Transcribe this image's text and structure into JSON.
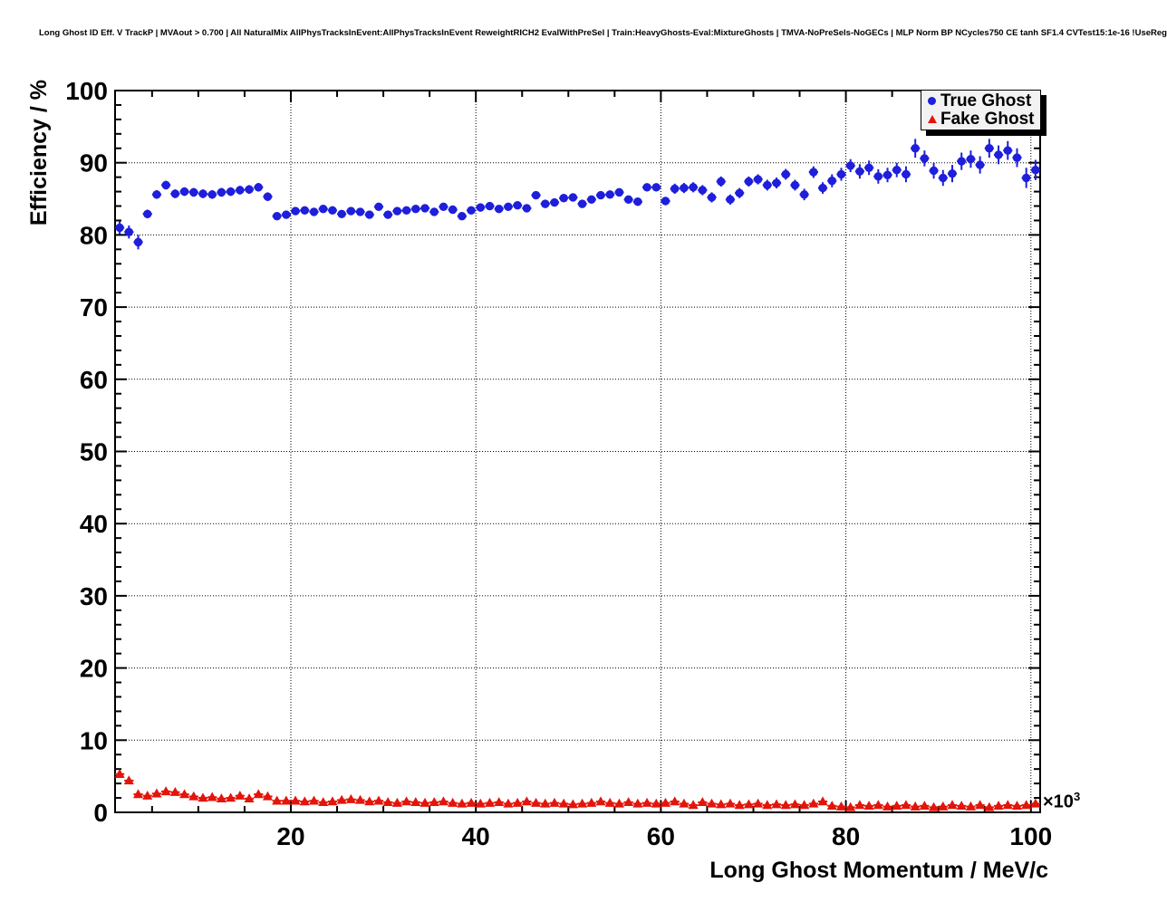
{
  "title": "Long Ghost ID Eff. V TrackP | MVAout > 0.700 | All NaturalMix AllPhysTracksInEvent:AllPhysTracksInEvent ReweightRICH2 EvalWithPreSel | Train:HeavyGhosts-Eval:MixtureGhosts | TMVA-NoPreSels-NoGECs | MLP Norm BP NCycles750 CE tanh SF1.4 CVTest15:1e-16 !UseReg",
  "axes": {
    "x_label": "Long Ghost Momentum / MeV/c",
    "y_label": "Efficiency / %",
    "x_exponent_base": "×10",
    "x_exponent_power": "3",
    "x_major_ticks": [
      20,
      40,
      60,
      80,
      100
    ],
    "x_tick_labels": [
      "20",
      "40",
      "60",
      "80",
      "100"
    ],
    "x_minor_step": 5,
    "y_major_ticks": [
      0,
      10,
      20,
      30,
      40,
      50,
      60,
      70,
      80,
      90,
      100
    ],
    "y_tick_labels": [
      "0",
      "10",
      "20",
      "30",
      "40",
      "50",
      "60",
      "70",
      "80",
      "90",
      "100"
    ],
    "y_minor_step": 2,
    "x_range_thousands": [
      1,
      101
    ],
    "y_range": [
      0,
      100
    ]
  },
  "legend": {
    "entries": [
      {
        "label": "True Ghost",
        "marker": "filled-circle",
        "color": "#1e1edc"
      },
      {
        "label": "Fake Ghost",
        "marker": "filled-triangle-up",
        "color": "#e3150b"
      }
    ]
  },
  "colors": {
    "background": "#ffffff",
    "frame": "#000000",
    "grid": "#000000",
    "legend_bg": "#f2f2f2",
    "true_ghost": "#1e1edc",
    "fake_ghost": "#e3150b"
  },
  "chart_data": {
    "type": "scatter",
    "title": "Long Ghost ID Eff. V TrackP | MVAout > 0.700",
    "xlabel": "Long Ghost Momentum / MeV/c",
    "ylabel": "Efficiency / %",
    "xlim_mev": [
      1000,
      101000
    ],
    "ylim": [
      0,
      100
    ],
    "grid": "dotted",
    "legend_position": "top-right",
    "bin_width_mev": 1000,
    "x_start_k": 1.5,
    "x_step_k": 1,
    "x_err_k": 0.5,
    "series": [
      {
        "name": "True Ghost",
        "marker": "filled-circle",
        "color": "#1e1edc",
        "values": [
          81.0,
          80.4,
          79.0,
          82.9,
          85.6,
          86.9,
          85.7,
          86.0,
          85.9,
          85.7,
          85.6,
          85.9,
          86.0,
          86.2,
          86.3,
          86.6,
          85.3,
          82.6,
          82.8,
          83.3,
          83.4,
          83.2,
          83.6,
          83.4,
          82.9,
          83.3,
          83.2,
          82.8,
          83.9,
          82.8,
          83.3,
          83.4,
          83.6,
          83.7,
          83.2,
          83.9,
          83.5,
          82.6,
          83.4,
          83.8,
          84.0,
          83.6,
          83.9,
          84.1,
          83.7,
          85.5,
          84.3,
          84.5,
          85.1,
          85.2,
          84.3,
          84.9,
          85.5,
          85.6,
          85.9,
          84.9,
          84.6,
          86.6,
          86.6,
          84.7,
          86.4,
          86.5,
          86.6,
          86.2,
          85.2,
          87.4,
          84.9,
          85.8,
          87.4,
          87.7,
          86.9,
          87.2,
          88.4,
          86.9,
          85.6,
          88.7,
          86.5,
          87.5,
          88.4,
          89.6,
          88.8,
          89.3,
          88.1,
          88.3,
          89.0,
          88.4,
          92.0,
          90.6,
          88.9,
          87.9,
          88.5,
          90.2,
          90.5,
          89.7,
          92.0,
          91.1,
          91.7,
          90.7,
          87.9,
          89.0
        ],
        "errors": [
          0.9,
          0.9,
          1.0,
          0.6,
          0.6,
          0.6,
          0.6,
          0.6,
          0.6,
          0.6,
          0.6,
          0.6,
          0.6,
          0.6,
          0.6,
          0.6,
          0.6,
          0.45,
          0.45,
          0.45,
          0.45,
          0.45,
          0.45,
          0.45,
          0.45,
          0.45,
          0.45,
          0.45,
          0.45,
          0.45,
          0.45,
          0.45,
          0.45,
          0.45,
          0.45,
          0.45,
          0.45,
          0.45,
          0.45,
          0.45,
          0.45,
          0.45,
          0.45,
          0.45,
          0.45,
          0.5,
          0.5,
          0.5,
          0.5,
          0.5,
          0.55,
          0.55,
          0.55,
          0.55,
          0.55,
          0.55,
          0.55,
          0.55,
          0.55,
          0.55,
          0.7,
          0.7,
          0.7,
          0.7,
          0.7,
          0.7,
          0.7,
          0.7,
          0.7,
          0.7,
          0.75,
          0.75,
          0.75,
          0.75,
          0.8,
          0.8,
          0.8,
          0.9,
          0.9,
          0.9,
          1.0,
          1.0,
          1.0,
          1.0,
          1.0,
          1.1,
          1.3,
          1.1,
          1.1,
          1.1,
          1.2,
          1.2,
          1.2,
          1.2,
          1.3,
          1.3,
          1.3,
          1.3,
          1.4,
          1.4
        ]
      },
      {
        "name": "Fake Ghost",
        "marker": "filled-triangle-up",
        "color": "#e3150b",
        "values": [
          5.3,
          4.4,
          2.5,
          2.3,
          2.6,
          2.9,
          2.8,
          2.5,
          2.2,
          2.0,
          2.1,
          1.9,
          2.0,
          2.3,
          1.9,
          2.5,
          2.2,
          1.6,
          1.6,
          1.6,
          1.5,
          1.6,
          1.4,
          1.5,
          1.7,
          1.8,
          1.7,
          1.5,
          1.6,
          1.4,
          1.3,
          1.5,
          1.4,
          1.3,
          1.4,
          1.5,
          1.3,
          1.2,
          1.3,
          1.2,
          1.3,
          1.4,
          1.2,
          1.3,
          1.5,
          1.3,
          1.2,
          1.3,
          1.2,
          1.1,
          1.2,
          1.3,
          1.5,
          1.3,
          1.2,
          1.4,
          1.2,
          1.3,
          1.2,
          1.3,
          1.5,
          1.2,
          1.0,
          1.4,
          1.2,
          1.1,
          1.2,
          1.0,
          1.1,
          1.2,
          1.0,
          1.1,
          1.0,
          1.1,
          1.0,
          1.2,
          1.5,
          0.9,
          0.8,
          0.7,
          1.0,
          0.9,
          1.0,
          0.8,
          0.9,
          1.0,
          0.8,
          0.9,
          0.7,
          0.8,
          1.0,
          0.9,
          0.8,
          1.0,
          0.7,
          0.9,
          1.0,
          0.9,
          1.0,
          1.2
        ],
        "errors": [
          0.5,
          0.45,
          0.3,
          0.3,
          0.3,
          0.3,
          0.3,
          0.25,
          0.25,
          0.25,
          0.25,
          0.25,
          0.25,
          0.25,
          0.25,
          0.25,
          0.25,
          0.25,
          0.25,
          0.25,
          0.2,
          0.2,
          0.2,
          0.2,
          0.2,
          0.2,
          0.2,
          0.2,
          0.2,
          0.2,
          0.2,
          0.2,
          0.2,
          0.2,
          0.2,
          0.2,
          0.2,
          0.2,
          0.2,
          0.2,
          0.15,
          0.15,
          0.15,
          0.15,
          0.15,
          0.15,
          0.15,
          0.15,
          0.15,
          0.15,
          0.15,
          0.15,
          0.15,
          0.15,
          0.15,
          0.15,
          0.15,
          0.15,
          0.15,
          0.15,
          0.15,
          0.15,
          0.15,
          0.15,
          0.15,
          0.15,
          0.15,
          0.15,
          0.15,
          0.15,
          0.15,
          0.15,
          0.15,
          0.15,
          0.15,
          0.2,
          0.25,
          0.2,
          0.2,
          0.2,
          0.2,
          0.2,
          0.2,
          0.2,
          0.2,
          0.2,
          0.2,
          0.2,
          0.2,
          0.2,
          0.25,
          0.25,
          0.25,
          0.25,
          0.25,
          0.25,
          0.3,
          0.3,
          0.3,
          0.35
        ]
      }
    ]
  }
}
